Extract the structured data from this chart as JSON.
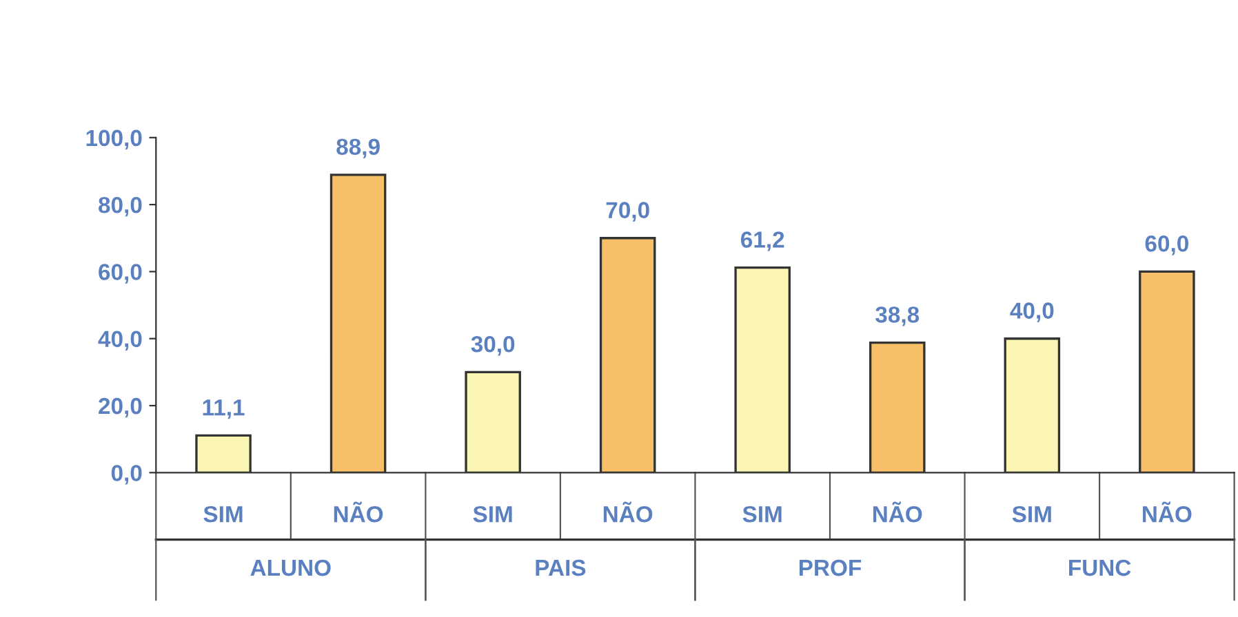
{
  "chart_data": {
    "type": "bar",
    "categories": [
      "SIM",
      "NÃO",
      "SIM",
      "NÃO",
      "SIM",
      "NÃO",
      "SIM",
      "NÃO"
    ],
    "values": [
      11.1,
      88.9,
      30.0,
      70.0,
      61.2,
      38.8,
      40.0,
      60.0
    ],
    "colors": [
      "#fbf6b4",
      "#f6bf68",
      "#fbf6b4",
      "#f6bf68",
      "#fbf6b4",
      "#f6bf68",
      "#fbf6b4",
      "#f6bf68"
    ],
    "value_labels": [
      "11,1",
      "88,9",
      "30,0",
      "70,0",
      "61,2",
      "38,8",
      "40,0",
      "60,0"
    ],
    "ylim": [
      0,
      100
    ],
    "yticks": [
      {
        "value": 0,
        "label": "0,0"
      },
      {
        "value": 20,
        "label": "20,0"
      },
      {
        "value": 40,
        "label": "40,0"
      },
      {
        "value": 60,
        "label": "60,0"
      },
      {
        "value": 80,
        "label": "80,0"
      },
      {
        "value": 100,
        "label": "100,0"
      }
    ],
    "annotations": [
      "ALUNO",
      "PAIS",
      "PROF",
      "FUNC"
    ]
  }
}
